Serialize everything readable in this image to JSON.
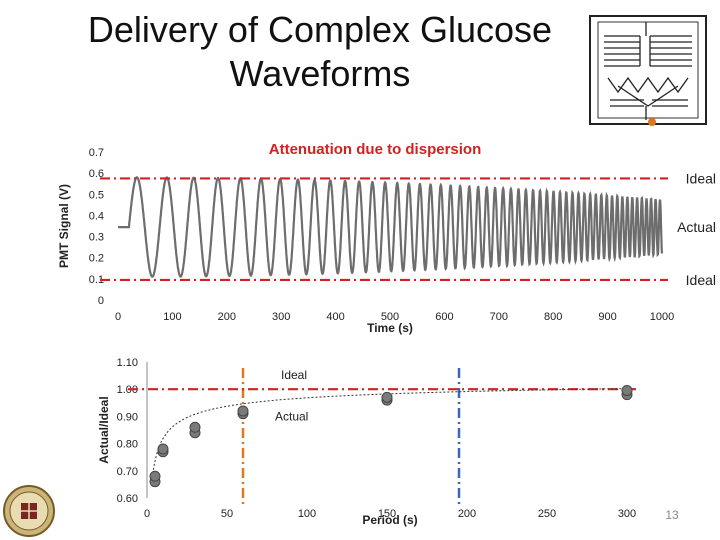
{
  "slide": {
    "title_line1": "Delivery of Complex Glucose",
    "title_line2": "Waveforms",
    "page_number": "13"
  },
  "chart_data": [
    {
      "type": "line",
      "title": "Attenuation due to dispersion",
      "xlabel": "Time (s)",
      "ylabel": "PMT Signal (V)",
      "xlim": [
        0,
        1000
      ],
      "ylim": [
        0,
        0.7
      ],
      "x_ticks": [
        "0",
        "100",
        "200",
        "300",
        "400",
        "500",
        "600",
        "700",
        "800",
        "900",
        "1000"
      ],
      "y_ticks": [
        "0",
        "0.1",
        "0.2",
        "0.3",
        "0.4",
        "0.5",
        "0.6",
        "0.7"
      ],
      "baseline": 0.345,
      "amplitude": 0.235,
      "start_time": 20,
      "period_start": 60,
      "period_end": 8,
      "reference_lines": [
        {
          "y": 0.575,
          "label": "Ideal",
          "color": "#d42020"
        },
        {
          "y": 0.095,
          "label": "Ideal",
          "color": "#d42020"
        }
      ],
      "annotations": [
        {
          "label": "Actual",
          "x": 1000,
          "y": 0.345
        }
      ],
      "series_color": "#6d6d6d"
    },
    {
      "type": "scatter",
      "xlabel": "Period (s)",
      "ylabel": "Actual/Ideal",
      "xlim": [
        0,
        300
      ],
      "ylim": [
        0.6,
        1.1
      ],
      "x_ticks": [
        "0",
        "50",
        "100",
        "150",
        "200",
        "250",
        "300"
      ],
      "y_ticks": [
        "0.60",
        "0.70",
        "0.80",
        "0.90",
        "1.00",
        "1.10"
      ],
      "points": [
        {
          "x": 5,
          "y": 0.66
        },
        {
          "x": 5,
          "y": 0.68
        },
        {
          "x": 10,
          "y": 0.77
        },
        {
          "x": 10,
          "y": 0.78
        },
        {
          "x": 30,
          "y": 0.84
        },
        {
          "x": 30,
          "y": 0.86
        },
        {
          "x": 60,
          "y": 0.91
        },
        {
          "x": 60,
          "y": 0.92
        },
        {
          "x": 150,
          "y": 0.96
        },
        {
          "x": 150,
          "y": 0.97
        },
        {
          "x": 300,
          "y": 0.98
        },
        {
          "x": 300,
          "y": 0.995
        }
      ],
      "fit_curve": "dotted",
      "reference_lines": [
        {
          "y": 1.0,
          "label": "Ideal",
          "color": "#d42020"
        }
      ],
      "vertical_lines": [
        {
          "x": 60,
          "color": "#e07820"
        },
        {
          "x": 195,
          "color": "#3a66c0"
        }
      ],
      "annotations": [
        {
          "label": "Actual",
          "x": 80,
          "y": 0.885
        }
      ]
    }
  ]
}
